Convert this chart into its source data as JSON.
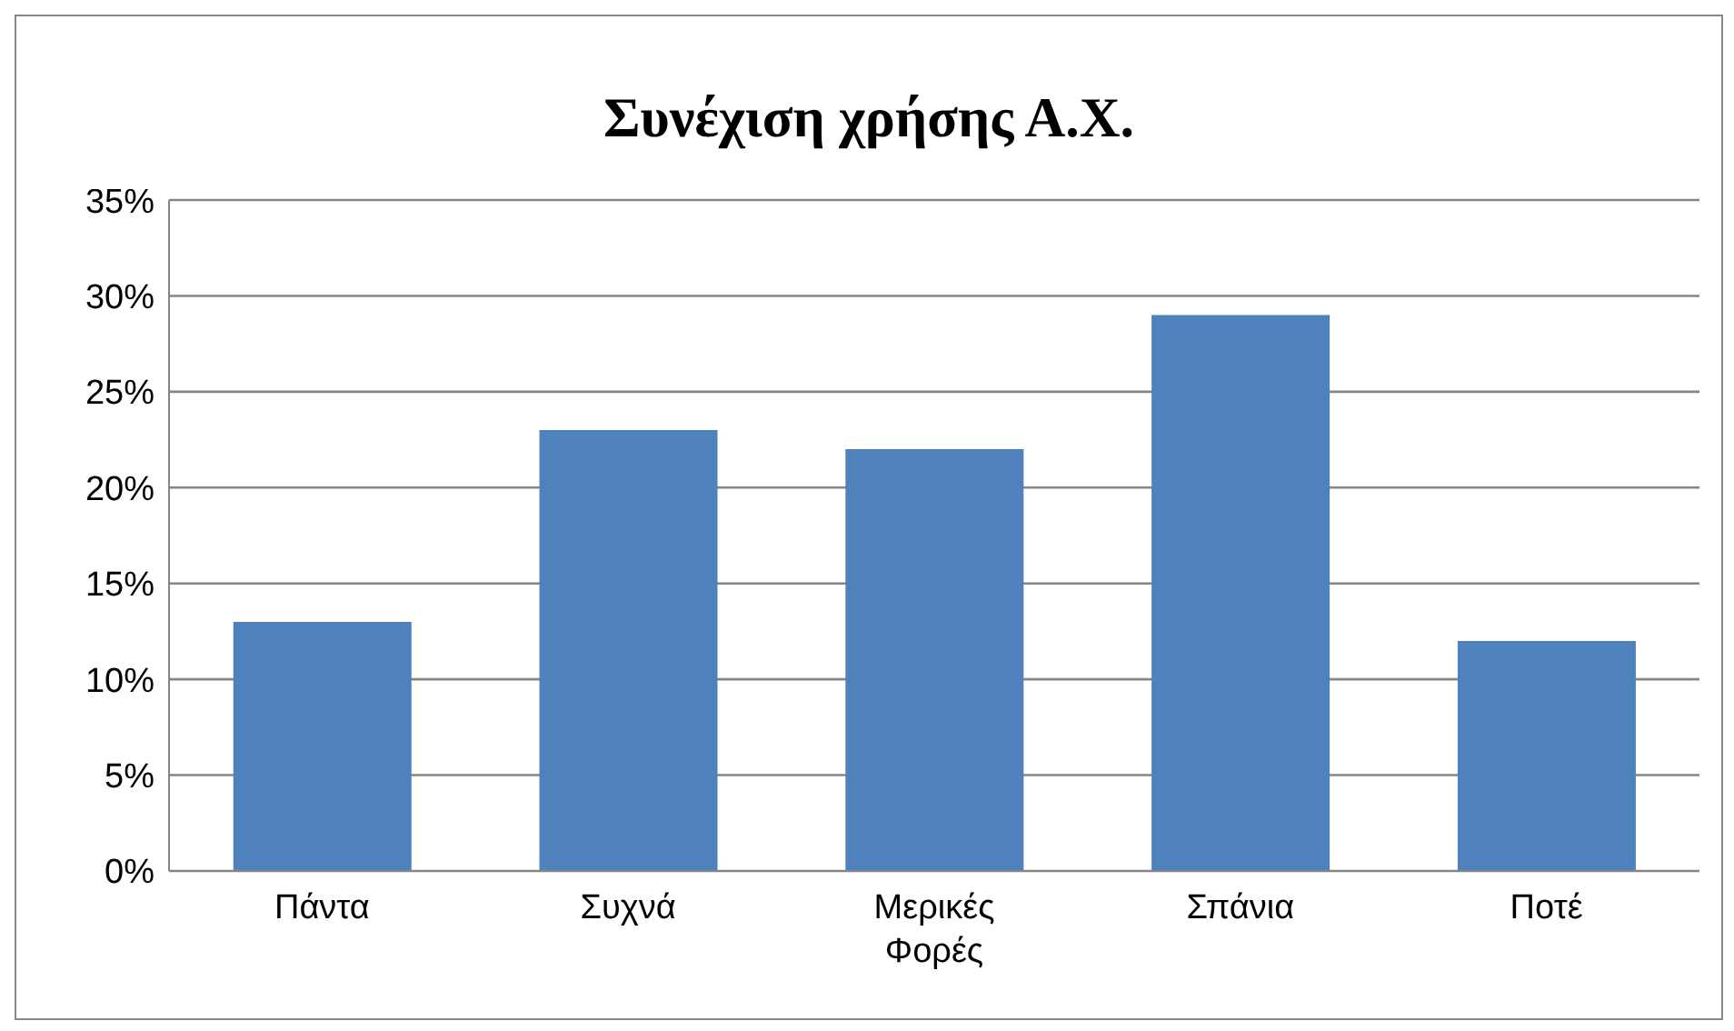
{
  "chart_data": {
    "type": "bar",
    "title": "Συνέχιση χρήσης Α.Χ.",
    "categories": [
      "Πάντα",
      "Συχνά",
      "Μερικές Φορές",
      "Σπάνια",
      "Ποτέ"
    ],
    "values": [
      13,
      23,
      22,
      29,
      12
    ],
    "color": "#4f81bd",
    "ylim": [
      0,
      35
    ],
    "yticks": [
      {
        "value": 0,
        "label": "0%"
      },
      {
        "value": 5,
        "label": "5%"
      },
      {
        "value": 10,
        "label": "10%"
      },
      {
        "value": 15,
        "label": "15%"
      },
      {
        "value": 20,
        "label": "20%"
      },
      {
        "value": 25,
        "label": "25%"
      },
      {
        "value": 30,
        "label": "30%"
      },
      {
        "value": 35,
        "label": "35%"
      }
    ],
    "grid": "y",
    "legend": false
  }
}
